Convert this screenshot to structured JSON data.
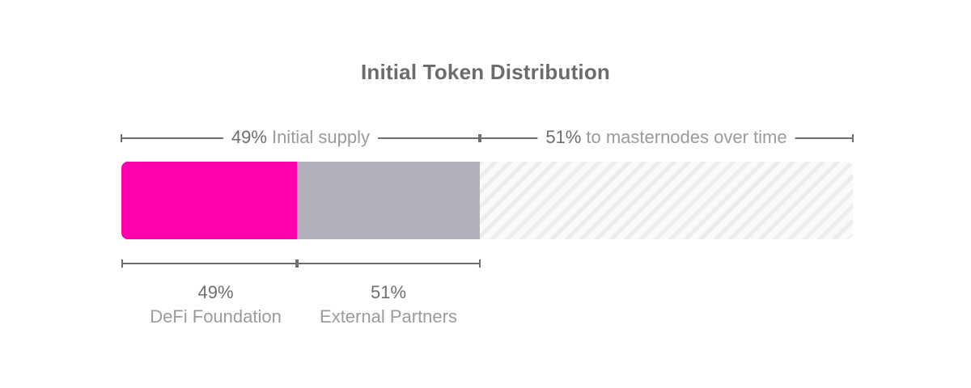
{
  "chart_data": {
    "type": "bar",
    "title": "Initial Token Distribution",
    "orientation": "horizontal-stacked",
    "total_split": [
      {
        "percent_label": "49%",
        "label": "Initial supply",
        "value": 49
      },
      {
        "percent_label": "51%",
        "label": "to masternodes over time",
        "value": 51,
        "pattern": "hatched"
      }
    ],
    "initial_supply_split": [
      {
        "percent_label": "49%",
        "label": "DeFi Foundation",
        "value": 49,
        "color": "#ff00aa"
      },
      {
        "percent_label": "51%",
        "label": "External Partners",
        "value": 51,
        "color": "#b1afb8"
      }
    ]
  },
  "colors": {
    "title": "#6b6b6b",
    "percent_text": "#6e6e6e",
    "label_text": "#9b9b9b",
    "bracket": "#6e6e6e",
    "hatch_bg": "#fafafa",
    "hatch_line": "#ececec"
  }
}
